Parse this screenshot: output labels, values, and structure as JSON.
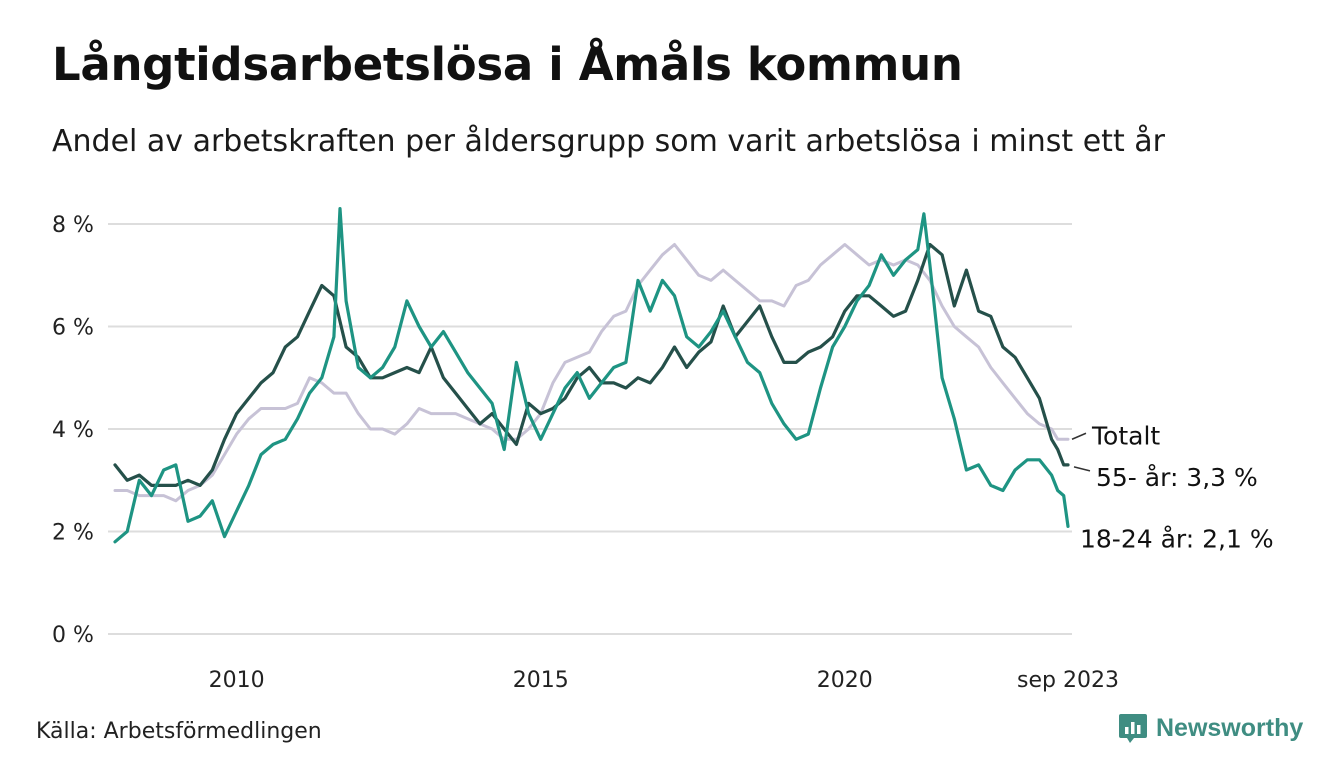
{
  "title": "Långtidsarbetslösa i Åmåls kommun",
  "subtitle": "Andel av arbetskraften per åldersgrupp som varit arbetslösa i minst ett år",
  "source": "Källa: Arbetsförmedlingen",
  "brand": {
    "name": "Newsworthy",
    "icon": "newsworthy-chart-logo-icon",
    "color": "#3f8d82"
  },
  "chart_data": {
    "type": "line",
    "x_range": [
      2008.0,
      2023.67
    ],
    "ylim": [
      0,
      8
    ],
    "y_ticks": [
      {
        "value": 0,
        "label": "0 %"
      },
      {
        "value": 2,
        "label": "2 %"
      },
      {
        "value": 4,
        "label": "4 %"
      },
      {
        "value": 6,
        "label": "6 %"
      },
      {
        "value": 8,
        "label": "8 %"
      }
    ],
    "x_ticks": [
      {
        "value": 2010.0,
        "label": "2010"
      },
      {
        "value": 2015.0,
        "label": "2015"
      },
      {
        "value": 2020.0,
        "label": "2020"
      },
      {
        "value": 2023.67,
        "label": "sep 2023"
      }
    ],
    "grid": true,
    "series": [
      {
        "name": "Totalt",
        "end_label": "Totalt",
        "color": "#c7c2d6",
        "points": [
          [
            2008.0,
            2.8
          ],
          [
            2008.2,
            2.8
          ],
          [
            2008.4,
            2.7
          ],
          [
            2008.6,
            2.7
          ],
          [
            2008.8,
            2.7
          ],
          [
            2009.0,
            2.6
          ],
          [
            2009.2,
            2.8
          ],
          [
            2009.4,
            2.9
          ],
          [
            2009.6,
            3.1
          ],
          [
            2009.8,
            3.5
          ],
          [
            2010.0,
            3.9
          ],
          [
            2010.2,
            4.2
          ],
          [
            2010.4,
            4.4
          ],
          [
            2010.6,
            4.4
          ],
          [
            2010.8,
            4.4
          ],
          [
            2011.0,
            4.5
          ],
          [
            2011.2,
            5.0
          ],
          [
            2011.4,
            4.9
          ],
          [
            2011.6,
            4.7
          ],
          [
            2011.8,
            4.7
          ],
          [
            2012.0,
            4.3
          ],
          [
            2012.2,
            4.0
          ],
          [
            2012.4,
            4.0
          ],
          [
            2012.6,
            3.9
          ],
          [
            2012.8,
            4.1
          ],
          [
            2013.0,
            4.4
          ],
          [
            2013.2,
            4.3
          ],
          [
            2013.4,
            4.3
          ],
          [
            2013.6,
            4.3
          ],
          [
            2013.8,
            4.2
          ],
          [
            2014.0,
            4.1
          ],
          [
            2014.2,
            4.0
          ],
          [
            2014.4,
            3.8
          ],
          [
            2014.6,
            3.8
          ],
          [
            2014.8,
            4.0
          ],
          [
            2015.0,
            4.3
          ],
          [
            2015.2,
            4.9
          ],
          [
            2015.4,
            5.3
          ],
          [
            2015.6,
            5.4
          ],
          [
            2015.8,
            5.5
          ],
          [
            2016.0,
            5.9
          ],
          [
            2016.2,
            6.2
          ],
          [
            2016.4,
            6.3
          ],
          [
            2016.6,
            6.8
          ],
          [
            2016.8,
            7.1
          ],
          [
            2017.0,
            7.4
          ],
          [
            2017.2,
            7.6
          ],
          [
            2017.4,
            7.3
          ],
          [
            2017.6,
            7.0
          ],
          [
            2017.8,
            6.9
          ],
          [
            2018.0,
            7.1
          ],
          [
            2018.2,
            6.9
          ],
          [
            2018.4,
            6.7
          ],
          [
            2018.6,
            6.5
          ],
          [
            2018.8,
            6.5
          ],
          [
            2019.0,
            6.4
          ],
          [
            2019.2,
            6.8
          ],
          [
            2019.4,
            6.9
          ],
          [
            2019.6,
            7.2
          ],
          [
            2019.8,
            7.4
          ],
          [
            2020.0,
            7.6
          ],
          [
            2020.2,
            7.4
          ],
          [
            2020.4,
            7.2
          ],
          [
            2020.6,
            7.3
          ],
          [
            2020.8,
            7.2
          ],
          [
            2021.0,
            7.3
          ],
          [
            2021.2,
            7.2
          ],
          [
            2021.4,
            6.9
          ],
          [
            2021.6,
            6.4
          ],
          [
            2021.8,
            6.0
          ],
          [
            2022.0,
            5.8
          ],
          [
            2022.2,
            5.6
          ],
          [
            2022.4,
            5.2
          ],
          [
            2022.6,
            4.9
          ],
          [
            2022.8,
            4.6
          ],
          [
            2023.0,
            4.3
          ],
          [
            2023.2,
            4.1
          ],
          [
            2023.4,
            4.0
          ],
          [
            2023.5,
            3.8
          ],
          [
            2023.67,
            3.8
          ]
        ]
      },
      {
        "name": "55- år",
        "end_label": "55- år: 3,3 %",
        "color": "#25504a",
        "points": [
          [
            2008.0,
            3.3
          ],
          [
            2008.2,
            3.0
          ],
          [
            2008.4,
            3.1
          ],
          [
            2008.6,
            2.9
          ],
          [
            2008.8,
            2.9
          ],
          [
            2009.0,
            2.9
          ],
          [
            2009.2,
            3.0
          ],
          [
            2009.4,
            2.9
          ],
          [
            2009.6,
            3.2
          ],
          [
            2009.8,
            3.8
          ],
          [
            2010.0,
            4.3
          ],
          [
            2010.2,
            4.6
          ],
          [
            2010.4,
            4.9
          ],
          [
            2010.6,
            5.1
          ],
          [
            2010.8,
            5.6
          ],
          [
            2011.0,
            5.8
          ],
          [
            2011.2,
            6.3
          ],
          [
            2011.4,
            6.8
          ],
          [
            2011.6,
            6.6
          ],
          [
            2011.8,
            5.6
          ],
          [
            2012.0,
            5.4
          ],
          [
            2012.2,
            5.0
          ],
          [
            2012.4,
            5.0
          ],
          [
            2012.6,
            5.1
          ],
          [
            2012.8,
            5.2
          ],
          [
            2013.0,
            5.1
          ],
          [
            2013.2,
            5.6
          ],
          [
            2013.4,
            5.0
          ],
          [
            2013.6,
            4.7
          ],
          [
            2013.8,
            4.4
          ],
          [
            2014.0,
            4.1
          ],
          [
            2014.2,
            4.3
          ],
          [
            2014.4,
            4.0
          ],
          [
            2014.6,
            3.7
          ],
          [
            2014.8,
            4.5
          ],
          [
            2015.0,
            4.3
          ],
          [
            2015.2,
            4.4
          ],
          [
            2015.4,
            4.6
          ],
          [
            2015.6,
            5.0
          ],
          [
            2015.8,
            5.2
          ],
          [
            2016.0,
            4.9
          ],
          [
            2016.2,
            4.9
          ],
          [
            2016.4,
            4.8
          ],
          [
            2016.6,
            5.0
          ],
          [
            2016.8,
            4.9
          ],
          [
            2017.0,
            5.2
          ],
          [
            2017.2,
            5.6
          ],
          [
            2017.4,
            5.2
          ],
          [
            2017.6,
            5.5
          ],
          [
            2017.8,
            5.7
          ],
          [
            2018.0,
            6.4
          ],
          [
            2018.2,
            5.8
          ],
          [
            2018.4,
            6.1
          ],
          [
            2018.6,
            6.4
          ],
          [
            2018.8,
            5.8
          ],
          [
            2019.0,
            5.3
          ],
          [
            2019.2,
            5.3
          ],
          [
            2019.4,
            5.5
          ],
          [
            2019.6,
            5.6
          ],
          [
            2019.8,
            5.8
          ],
          [
            2020.0,
            6.3
          ],
          [
            2020.2,
            6.6
          ],
          [
            2020.4,
            6.6
          ],
          [
            2020.6,
            6.4
          ],
          [
            2020.8,
            6.2
          ],
          [
            2021.0,
            6.3
          ],
          [
            2021.2,
            6.9
          ],
          [
            2021.4,
            7.6
          ],
          [
            2021.6,
            7.4
          ],
          [
            2021.8,
            6.4
          ],
          [
            2022.0,
            7.1
          ],
          [
            2022.2,
            6.3
          ],
          [
            2022.4,
            6.2
          ],
          [
            2022.6,
            5.6
          ],
          [
            2022.8,
            5.4
          ],
          [
            2023.0,
            5.0
          ],
          [
            2023.2,
            4.6
          ],
          [
            2023.4,
            3.8
          ],
          [
            2023.5,
            3.6
          ],
          [
            2023.6,
            3.3
          ],
          [
            2023.67,
            3.3
          ]
        ]
      },
      {
        "name": "18-24 år",
        "end_label": "18-24 år: 2,1 %",
        "color": "#1e9483",
        "points": [
          [
            2008.0,
            1.8
          ],
          [
            2008.2,
            2.0
          ],
          [
            2008.4,
            3.0
          ],
          [
            2008.6,
            2.7
          ],
          [
            2008.8,
            3.2
          ],
          [
            2009.0,
            3.3
          ],
          [
            2009.2,
            2.2
          ],
          [
            2009.4,
            2.3
          ],
          [
            2009.6,
            2.6
          ],
          [
            2009.8,
            1.9
          ],
          [
            2010.0,
            2.4
          ],
          [
            2010.2,
            2.9
          ],
          [
            2010.4,
            3.5
          ],
          [
            2010.6,
            3.7
          ],
          [
            2010.8,
            3.8
          ],
          [
            2011.0,
            4.2
          ],
          [
            2011.2,
            4.7
          ],
          [
            2011.4,
            5.0
          ],
          [
            2011.6,
            5.8
          ],
          [
            2011.7,
            8.3
          ],
          [
            2011.8,
            6.5
          ],
          [
            2012.0,
            5.2
          ],
          [
            2012.2,
            5.0
          ],
          [
            2012.4,
            5.2
          ],
          [
            2012.6,
            5.6
          ],
          [
            2012.8,
            6.5
          ],
          [
            2013.0,
            6.0
          ],
          [
            2013.2,
            5.6
          ],
          [
            2013.4,
            5.9
          ],
          [
            2013.6,
            5.5
          ],
          [
            2013.8,
            5.1
          ],
          [
            2014.0,
            4.8
          ],
          [
            2014.2,
            4.5
          ],
          [
            2014.4,
            3.6
          ],
          [
            2014.6,
            5.3
          ],
          [
            2014.8,
            4.3
          ],
          [
            2015.0,
            3.8
          ],
          [
            2015.2,
            4.3
          ],
          [
            2015.4,
            4.8
          ],
          [
            2015.6,
            5.1
          ],
          [
            2015.8,
            4.6
          ],
          [
            2016.0,
            4.9
          ],
          [
            2016.2,
            5.2
          ],
          [
            2016.4,
            5.3
          ],
          [
            2016.6,
            6.9
          ],
          [
            2016.8,
            6.3
          ],
          [
            2017.0,
            6.9
          ],
          [
            2017.2,
            6.6
          ],
          [
            2017.4,
            5.8
          ],
          [
            2017.6,
            5.6
          ],
          [
            2017.8,
            5.9
          ],
          [
            2018.0,
            6.3
          ],
          [
            2018.2,
            5.8
          ],
          [
            2018.4,
            5.3
          ],
          [
            2018.6,
            5.1
          ],
          [
            2018.8,
            4.5
          ],
          [
            2019.0,
            4.1
          ],
          [
            2019.2,
            3.8
          ],
          [
            2019.4,
            3.9
          ],
          [
            2019.6,
            4.8
          ],
          [
            2019.8,
            5.6
          ],
          [
            2020.0,
            6.0
          ],
          [
            2020.2,
            6.5
          ],
          [
            2020.4,
            6.8
          ],
          [
            2020.6,
            7.4
          ],
          [
            2020.8,
            7.0
          ],
          [
            2021.0,
            7.3
          ],
          [
            2021.2,
            7.5
          ],
          [
            2021.3,
            8.2
          ],
          [
            2021.4,
            7.2
          ],
          [
            2021.6,
            5.0
          ],
          [
            2021.8,
            4.2
          ],
          [
            2022.0,
            3.2
          ],
          [
            2022.2,
            3.3
          ],
          [
            2022.4,
            2.9
          ],
          [
            2022.6,
            2.8
          ],
          [
            2022.8,
            3.2
          ],
          [
            2023.0,
            3.4
          ],
          [
            2023.2,
            3.4
          ],
          [
            2023.4,
            3.1
          ],
          [
            2023.5,
            2.8
          ],
          [
            2023.6,
            2.7
          ],
          [
            2023.67,
            2.1
          ]
        ]
      }
    ]
  }
}
